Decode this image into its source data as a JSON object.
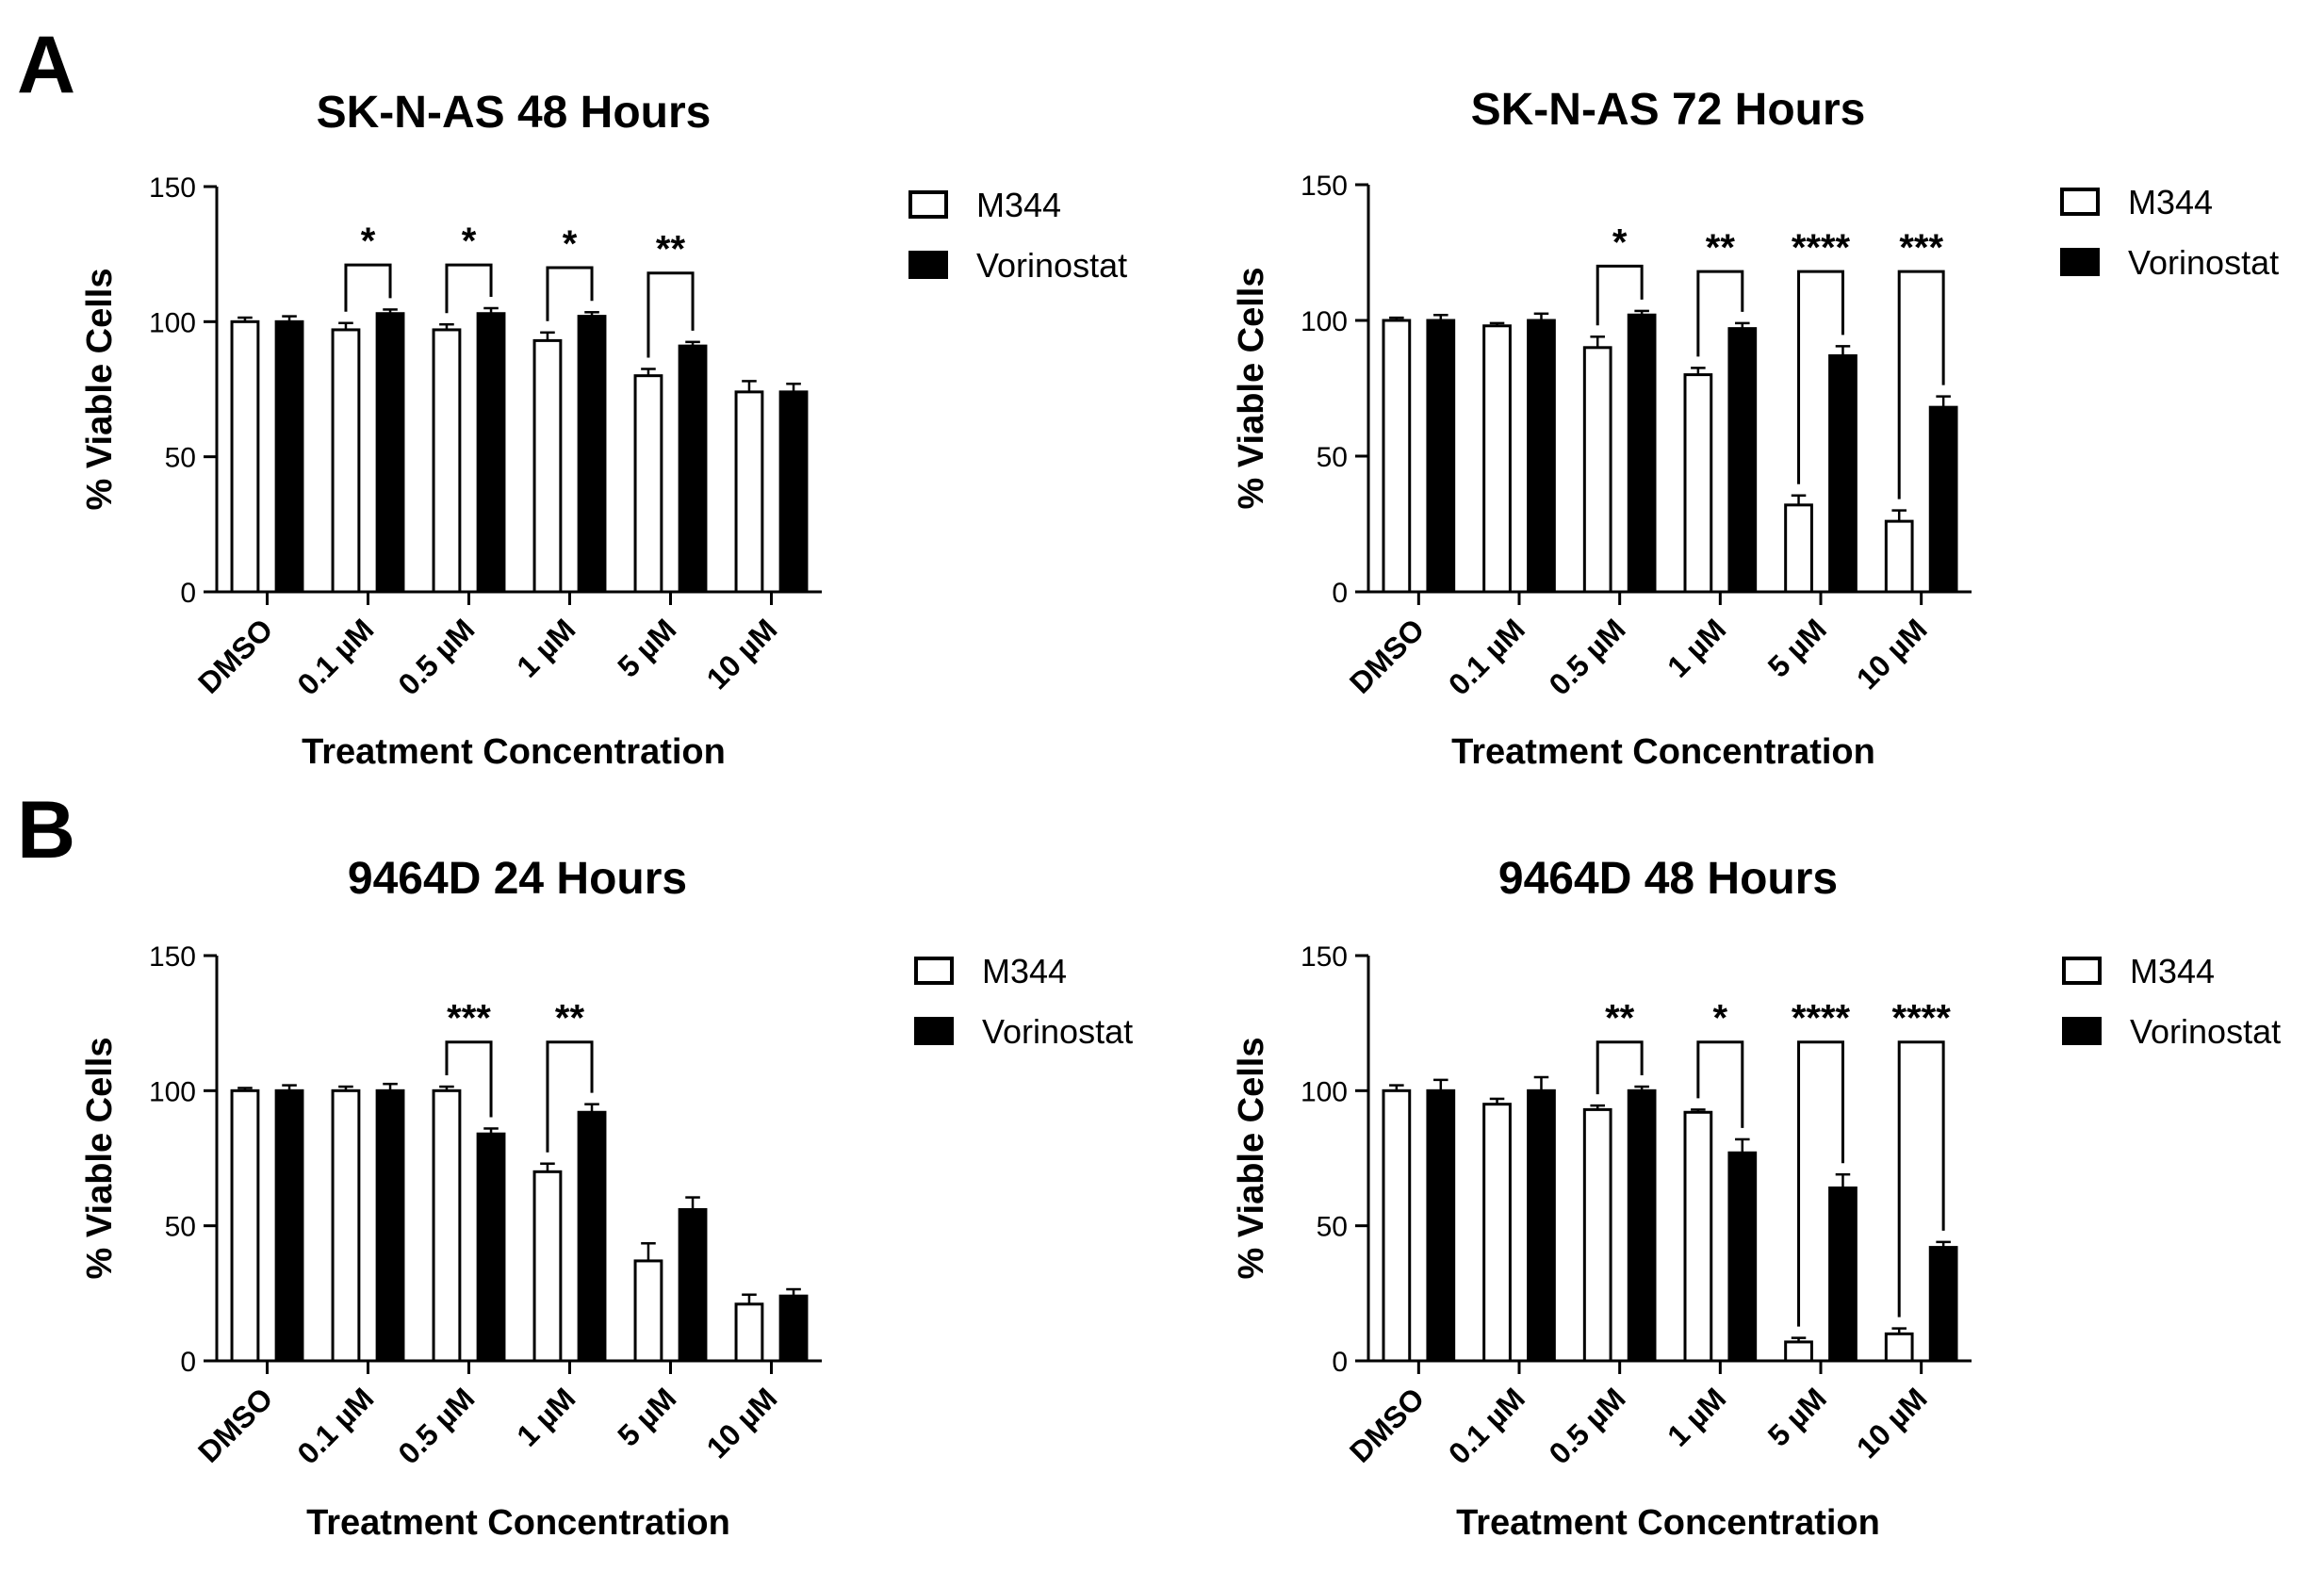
{
  "panel_labels": [
    "A",
    "B"
  ],
  "chart_data": [
    {
      "type": "bar",
      "title": "SK-N-AS 48 Hours",
      "xlabel": "Treatment  Concentration",
      "ylabel": "% Viable Cells",
      "ylim": [
        0,
        150
      ],
      "yticks": [
        "0",
        "50",
        "100",
        "150"
      ],
      "categories": [
        "DMSO",
        "0.1 µM",
        "0.5 µM",
        "1 µM",
        "5 µM",
        "10 µM"
      ],
      "series": [
        {
          "name": "M344",
          "values": [
            100,
            97,
            97,
            93,
            80,
            74
          ],
          "errors": [
            1.5,
            2.5,
            2,
            3,
            2.5,
            4
          ]
        },
        {
          "name": "Vorinostat",
          "values": [
            100,
            103,
            103,
            102,
            91,
            74
          ],
          "errors": [
            2,
            1.5,
            2,
            1.5,
            1.5,
            3
          ]
        }
      ],
      "significance": [
        "",
        "*",
        "*",
        "*",
        "**",
        ""
      ]
    },
    {
      "type": "bar",
      "title": "SK-N-AS 72 Hours",
      "xlabel": "Treatment  Concentration",
      "ylabel": "% Viable Cells",
      "ylim": [
        0,
        150
      ],
      "yticks": [
        "0",
        "50",
        "100",
        "150"
      ],
      "categories": [
        "DMSO",
        "0.1 µM",
        "0.5 µM",
        "1 µM",
        "5 µM",
        "10 µM"
      ],
      "series": [
        {
          "name": "M344",
          "values": [
            100,
            98,
            90,
            80,
            32,
            26
          ],
          "errors": [
            1,
            1,
            4,
            2.5,
            3.5,
            4
          ]
        },
        {
          "name": "Vorinostat",
          "values": [
            100,
            100,
            102,
            97,
            87,
            68
          ],
          "errors": [
            2,
            2.5,
            1.5,
            2,
            3.5,
            4
          ]
        }
      ],
      "significance": [
        "",
        "",
        "*",
        "**",
        "****",
        "***"
      ]
    },
    {
      "type": "bar",
      "title": "9464D 24 Hours",
      "xlabel": "Treatment  Concentration",
      "ylabel": "% Viable Cells",
      "ylim": [
        0,
        150
      ],
      "yticks": [
        "0",
        "50",
        "100",
        "150"
      ],
      "categories": [
        "DMSO",
        "0.1 µM",
        "0.5 µM",
        "1 µM",
        "5 µM",
        "10 µM"
      ],
      "series": [
        {
          "name": "M344",
          "values": [
            100,
            100,
            100,
            70,
            37,
            21
          ],
          "errors": [
            1,
            1.5,
            1.5,
            3,
            6.5,
            3.5
          ]
        },
        {
          "name": "Vorinostat",
          "values": [
            100,
            100,
            84,
            92,
            56,
            24
          ],
          "errors": [
            2,
            2.5,
            2,
            3,
            4.5,
            2.5
          ]
        }
      ],
      "significance": [
        "",
        "",
        "***",
        "**",
        "",
        ""
      ]
    },
    {
      "type": "bar",
      "title": "9464D 48 Hours",
      "xlabel": "Treatment Concentration",
      "ylabel": "% Viable Cells",
      "ylim": [
        0,
        150
      ],
      "yticks": [
        "0",
        "50",
        "100",
        "150"
      ],
      "categories": [
        "DMSO",
        "0.1 µM",
        "0.5 µM",
        "1 µM",
        "5 µM",
        "10 µM"
      ],
      "series": [
        {
          "name": "M344",
          "values": [
            100,
            95,
            93,
            92,
            7,
            10
          ],
          "errors": [
            2,
            2,
            1.5,
            1,
            1.5,
            2
          ]
        },
        {
          "name": "Vorinostat",
          "values": [
            100,
            100,
            100,
            77,
            64,
            42
          ],
          "errors": [
            4,
            5,
            1.5,
            5,
            5,
            2
          ]
        }
      ],
      "significance": [
        "",
        "",
        "**",
        "*",
        "****",
        "****"
      ]
    }
  ],
  "colors": {
    "m344_fill": "#ffffff",
    "vorinostat_fill": "#000000",
    "stroke": "#000000"
  }
}
